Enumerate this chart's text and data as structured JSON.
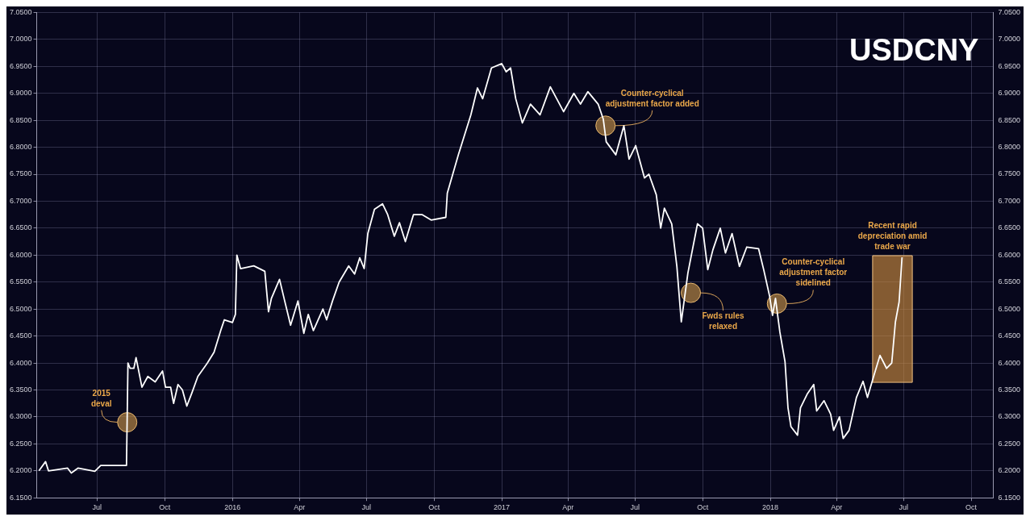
{
  "chart_data": {
    "type": "line",
    "title": "USDCNY",
    "x": [
      "2015-04-13",
      "2015-04-22",
      "2015-04-26",
      "2015-05-22",
      "2015-05-27",
      "2015-06-05",
      "2015-06-28",
      "2015-07-06",
      "2015-08-10",
      "2015-08-12",
      "2015-08-15",
      "2015-08-20",
      "2015-08-23",
      "2015-08-31",
      "2015-09-08",
      "2015-09-18",
      "2015-09-28",
      "2015-10-02",
      "2015-10-09",
      "2015-10-13",
      "2015-10-19",
      "2015-10-25",
      "2015-10-31",
      "2015-11-07",
      "2015-11-15",
      "2015-11-28",
      "2015-12-07",
      "2015-12-16",
      "2015-12-21",
      "2016-01-01",
      "2016-01-05",
      "2016-01-07",
      "2016-01-12",
      "2016-01-30",
      "2016-02-14",
      "2016-02-19",
      "2016-02-23",
      "2016-03-05",
      "2016-03-12",
      "2016-03-20",
      "2016-03-30",
      "2016-04-07",
      "2016-04-13",
      "2016-04-20",
      "2016-05-03",
      "2016-05-08",
      "2016-05-16",
      "2016-05-25",
      "2016-06-07",
      "2016-06-15",
      "2016-06-22",
      "2016-06-28",
      "2016-07-03",
      "2016-07-12",
      "2016-07-23",
      "2016-07-30",
      "2016-08-08",
      "2016-08-15",
      "2016-08-23",
      "2016-09-03",
      "2016-09-15",
      "2016-09-27",
      "2016-10-17",
      "2016-10-19",
      "2016-11-03",
      "2016-11-20",
      "2016-11-29",
      "2016-12-06",
      "2016-12-18",
      "2017-01-01",
      "2017-01-07",
      "2017-01-13",
      "2017-01-20",
      "2017-01-29",
      "2017-02-09",
      "2017-02-22",
      "2017-03-08",
      "2017-03-26",
      "2017-04-09",
      "2017-04-18",
      "2017-04-28",
      "2017-05-12",
      "2017-05-19",
      "2017-05-23",
      "2017-06-05",
      "2017-06-16",
      "2017-06-23",
      "2017-07-02",
      "2017-07-14",
      "2017-07-20",
      "2017-07-30",
      "2017-08-05",
      "2017-08-10",
      "2017-08-20",
      "2017-08-27",
      "2017-09-02",
      "2017-09-11",
      "2017-09-24",
      "2017-10-01",
      "2017-10-08",
      "2017-10-15",
      "2017-10-25",
      "2017-11-01",
      "2017-11-10",
      "2017-11-20",
      "2017-11-30",
      "2017-12-16",
      "2017-12-23",
      "2017-12-31",
      "2018-01-04",
      "2018-01-08",
      "2018-01-11",
      "2018-01-14",
      "2018-01-21",
      "2018-01-25",
      "2018-01-29",
      "2018-02-07",
      "2018-02-11",
      "2018-02-20",
      "2018-03-01",
      "2018-03-05",
      "2018-03-15",
      "2018-03-24",
      "2018-03-28",
      "2018-04-05",
      "2018-04-10",
      "2018-04-18",
      "2018-04-28",
      "2018-05-07",
      "2018-05-13",
      "2018-05-21",
      "2018-05-30",
      "2018-06-08",
      "2018-06-15",
      "2018-06-20",
      "2018-06-25",
      "2018-06-29"
    ],
    "series": [
      {
        "color": "#ffffff",
        "values": [
          6.2,
          6.217,
          6.2,
          6.205,
          6.196,
          6.205,
          6.199,
          6.21,
          6.21,
          6.4,
          6.39,
          6.39,
          6.41,
          6.355,
          6.375,
          6.365,
          6.385,
          6.355,
          6.355,
          6.325,
          6.36,
          6.35,
          6.32,
          6.345,
          6.375,
          6.4,
          6.42,
          6.46,
          6.48,
          6.475,
          6.49,
          6.6,
          6.575,
          6.58,
          6.57,
          6.495,
          6.52,
          6.555,
          6.515,
          6.47,
          6.515,
          6.455,
          6.49,
          6.46,
          6.5,
          6.48,
          6.515,
          6.55,
          6.58,
          6.565,
          6.595,
          6.575,
          6.64,
          6.685,
          6.695,
          6.675,
          6.635,
          6.66,
          6.625,
          6.675,
          6.675,
          6.665,
          6.67,
          6.715,
          6.786,
          6.86,
          6.91,
          6.89,
          6.947,
          6.955,
          6.94,
          6.947,
          6.89,
          6.845,
          6.88,
          6.86,
          6.912,
          6.866,
          6.9,
          6.88,
          6.903,
          6.88,
          6.852,
          6.81,
          6.786,
          6.84,
          6.778,
          6.803,
          6.743,
          6.75,
          6.712,
          6.65,
          6.687,
          6.658,
          6.579,
          6.476,
          6.567,
          6.658,
          6.65,
          6.573,
          6.61,
          6.65,
          6.604,
          6.64,
          6.579,
          6.615,
          6.612,
          6.573,
          6.524,
          6.488,
          6.52,
          6.488,
          6.457,
          6.402,
          6.317,
          6.282,
          6.266,
          6.317,
          6.342,
          6.36,
          6.311,
          6.33,
          6.305,
          6.275,
          6.3,
          6.26,
          6.275,
          6.336,
          6.366,
          6.336,
          6.373,
          6.414,
          6.39,
          6.4,
          6.476,
          6.513,
          6.596
        ]
      }
    ],
    "xlim": [
      "2015-04-10",
      "2018-10-31"
    ],
    "xticks": [
      {
        "value": "2015-07-01",
        "label": "Jul"
      },
      {
        "value": "2015-10-01",
        "label": "Oct"
      },
      {
        "value": "2016-01-01",
        "label": "2016"
      },
      {
        "value": "2016-04-01",
        "label": "Apr"
      },
      {
        "value": "2016-07-01",
        "label": "Jul"
      },
      {
        "value": "2016-10-01",
        "label": "Oct"
      },
      {
        "value": "2017-01-01",
        "label": "2017"
      },
      {
        "value": "2017-04-01",
        "label": "Apr"
      },
      {
        "value": "2017-07-01",
        "label": "Jul"
      },
      {
        "value": "2017-10-01",
        "label": "Oct"
      },
      {
        "value": "2018-01-01",
        "label": "2018"
      },
      {
        "value": "2018-04-01",
        "label": "Apr"
      },
      {
        "value": "2018-07-01",
        "label": "Jul"
      },
      {
        "value": "2018-10-01",
        "label": "Oct"
      }
    ],
    "ylim": [
      6.15,
      7.05
    ],
    "yticks": [
      {
        "value": 6.15,
        "label": "6.1500"
      },
      {
        "value": 6.2,
        "label": "6.2000"
      },
      {
        "value": 6.25,
        "label": "6.2500"
      },
      {
        "value": 6.3,
        "label": "6.3000"
      },
      {
        "value": 6.35,
        "label": "6.3500"
      },
      {
        "value": 6.4,
        "label": "6.4000"
      },
      {
        "value": 6.45,
        "label": "6.4500"
      },
      {
        "value": 6.5,
        "label": "6.5000"
      },
      {
        "value": 6.55,
        "label": "6.5500"
      },
      {
        "value": 6.6,
        "label": "6.6000"
      },
      {
        "value": 6.65,
        "label": "6.6500"
      },
      {
        "value": 6.7,
        "label": "6.7000"
      },
      {
        "value": 6.75,
        "label": "6.7500"
      },
      {
        "value": 6.8,
        "label": "6.8000"
      },
      {
        "value": 6.85,
        "label": "6.8500"
      },
      {
        "value": 6.9,
        "label": "6.9000"
      },
      {
        "value": 6.95,
        "label": "6.9500"
      },
      {
        "value": 7.0,
        "label": "7.0000"
      },
      {
        "value": 7.05,
        "label": "7.0500"
      }
    ],
    "y2lim": [
      6.15,
      7.05
    ],
    "y2ticks": [
      {
        "value": 6.15,
        "label": "6.1500"
      },
      {
        "value": 6.2,
        "label": "6.2000"
      },
      {
        "value": 6.25,
        "label": "6.2500"
      },
      {
        "value": 6.3,
        "label": "6.3000"
      },
      {
        "value": 6.35,
        "label": "6.3500"
      },
      {
        "value": 6.4,
        "label": "6.4000"
      },
      {
        "value": 6.45,
        "label": "6.4500"
      },
      {
        "value": 6.5,
        "label": "6.5000"
      },
      {
        "value": 6.55,
        "label": "6.5500"
      },
      {
        "value": 6.6,
        "label": "6.6000"
      },
      {
        "value": 6.65,
        "label": "6.6500"
      },
      {
        "value": 6.7,
        "label": "6.7000"
      },
      {
        "value": 6.75,
        "label": "6.7500"
      },
      {
        "value": 6.8,
        "label": "6.8000"
      },
      {
        "value": 6.85,
        "label": "6.8500"
      },
      {
        "value": 6.9,
        "label": "6.9000"
      },
      {
        "value": 6.95,
        "label": "6.9500"
      },
      {
        "value": 7.0,
        "label": "7.0000"
      },
      {
        "value": 7.05,
        "label": "7.0500"
      }
    ],
    "grid": true,
    "legend": false,
    "marker": "none",
    "line_style": "solid",
    "annotations": [
      {
        "text": "2015 deval",
        "x": "2015-08-11",
        "y": 6.29
      },
      {
        "text": "Counter-cyclical adjustment factor added",
        "x": "2017-05-22",
        "y": 6.84
      },
      {
        "text": "Fwds rules relaxed",
        "x": "2017-09-15",
        "y": 6.53
      },
      {
        "text": "Counter-cyclical adjustment factor sidelined",
        "x": "2018-01-10",
        "y": 6.51
      }
    ],
    "bands": [
      {
        "axis": "x",
        "from": "2018-05-20",
        "to": "2018-07-13",
        "label": "Recent rapid depreciation amid trade war",
        "color": "#c8893f"
      }
    ]
  }
}
